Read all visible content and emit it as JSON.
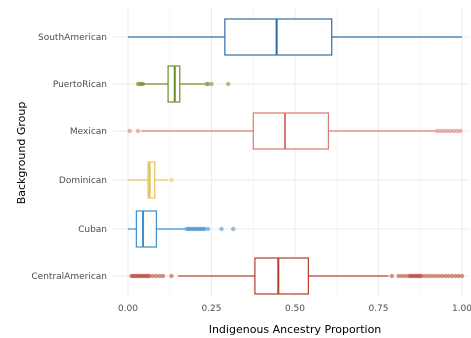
{
  "chart_data": {
    "type": "boxplot",
    "orientation": "horizontal",
    "xlabel": "Indigenous Ancestry Proportion",
    "ylabel": "Background Group",
    "xlim": [
      0,
      1
    ],
    "x_ticks": [
      0,
      0.25,
      0.5,
      0.75,
      1
    ],
    "x_tick_labels": [
      "0.00",
      "0.25",
      "0.50",
      "0.75",
      "1.00"
    ],
    "grid": true,
    "legend": "none",
    "categories": [
      "SouthAmerican",
      "PuertoRican",
      "Mexican",
      "Dominican",
      "Cuban",
      "CentralAmerican"
    ],
    "series": [
      {
        "category": "SouthAmerican",
        "color": "#2e6da4",
        "min": 0.0,
        "q1": 0.29,
        "median": 0.445,
        "q3": 0.61,
        "max": 1.0,
        "outliers": []
      },
      {
        "category": "PuertoRican",
        "color": "#6b8e23",
        "min": 0.04,
        "q1": 0.12,
        "median": 0.14,
        "q3": 0.155,
        "max": 0.23,
        "outliers": [
          0.03,
          0.035,
          0.04,
          0.045,
          0.235,
          0.24,
          0.25,
          0.3
        ]
      },
      {
        "category": "Mexican",
        "color": "#d9796f",
        "min": 0.04,
        "q1": 0.375,
        "median": 0.47,
        "q3": 0.6,
        "max": 0.92,
        "outliers": [
          0.005,
          0.03,
          0.925,
          0.935,
          0.945,
          0.955,
          0.965,
          0.975,
          0.985,
          0.995
        ]
      },
      {
        "category": "Dominican",
        "color": "#e6c25a",
        "min": 0.0,
        "q1": 0.06,
        "median": 0.065,
        "q3": 0.08,
        "max": 0.12,
        "outliers": [
          0.13
        ]
      },
      {
        "category": "Cuban",
        "color": "#3b8fd0",
        "min": 0.0,
        "q1": 0.025,
        "median": 0.045,
        "q3": 0.085,
        "max": 0.17,
        "outliers": [
          0.175,
          0.18,
          0.185,
          0.19,
          0.195,
          0.2,
          0.205,
          0.21,
          0.215,
          0.22,
          0.225,
          0.23,
          0.24,
          0.28,
          0.315
        ]
      },
      {
        "category": "CentralAmerican",
        "color": "#b5402a",
        "min": 0.15,
        "q1": 0.38,
        "median": 0.45,
        "q3": 0.54,
        "max": 0.78,
        "outliers": [
          0.01,
          0.015,
          0.02,
          0.025,
          0.03,
          0.035,
          0.04,
          0.045,
          0.05,
          0.055,
          0.06,
          0.065,
          0.075,
          0.085,
          0.095,
          0.105,
          0.13,
          0.79,
          0.81,
          0.82,
          0.83,
          0.84,
          0.845,
          0.85,
          0.855,
          0.86,
          0.865,
          0.87,
          0.875,
          0.88,
          0.89,
          0.9,
          0.91,
          0.92,
          0.93,
          0.94,
          0.95,
          0.96,
          0.97,
          0.98,
          0.99,
          1.0
        ]
      }
    ]
  }
}
